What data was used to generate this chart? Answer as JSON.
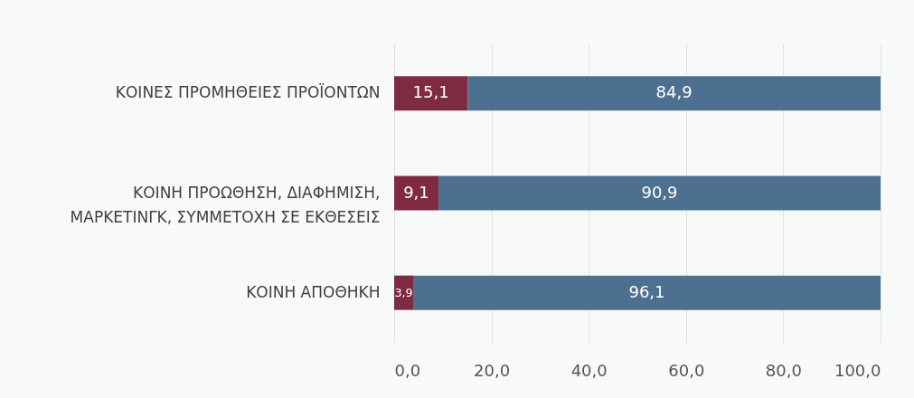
{
  "chart_data": {
    "type": "bar",
    "orientation": "horizontal",
    "stacked": true,
    "categories": [
      "ΚΟΙΝΕΣ ΠΡΟΜΗΘΕΙΕΣ ΠΡΟΪΟΝΤΩΝ",
      "ΚΟΙΝΗ ΠΡΟΩΘΗΣΗ, ΔΙΑΦΗΜΙΣΗ, ΜΑΡΚΕΤΙΝΓΚ, ΣΥΜΜΕΤΟΧΗ ΣΕ ΕΚΘΕΣΕΙΣ",
      "ΚΟΙΝΗ ΑΠΟΘΗΚΗ"
    ],
    "series": [
      {
        "color": "#7d2a42",
        "values": [
          15.1,
          9.1,
          3.9
        ],
        "value_labels": [
          "15,1",
          "9,1",
          "3,9"
        ]
      },
      {
        "color": "#4e7090",
        "values": [
          84.9,
          90.9,
          96.1
        ],
        "value_labels": [
          "84,9",
          "90,9",
          "96,1"
        ]
      }
    ],
    "xlim": [
      0,
      100
    ],
    "xticks": [
      {
        "value": 0,
        "label": "0,0"
      },
      {
        "value": 20,
        "label": "20,0"
      },
      {
        "value": 40,
        "label": "40,0"
      },
      {
        "value": 60,
        "label": "60,0"
      },
      {
        "value": 80,
        "label": "80,0"
      },
      {
        "value": 100,
        "label": "100,0"
      }
    ],
    "grid": "x"
  }
}
